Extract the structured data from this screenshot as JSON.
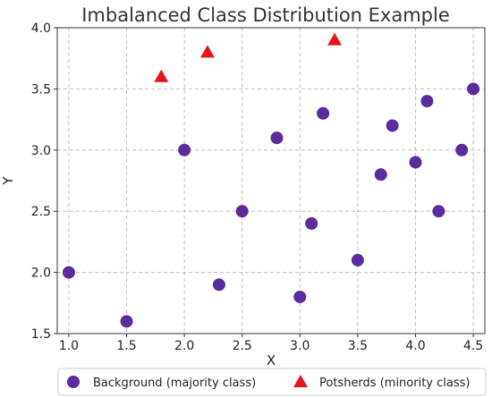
{
  "chart_data": {
    "type": "scatter",
    "title": "Imbalanced Class Distribution Example",
    "xlabel": "X",
    "ylabel": "Y",
    "xlim": [
      0.9,
      4.6
    ],
    "ylim": [
      1.5,
      4.0
    ],
    "xticks": [
      1.0,
      1.5,
      2.0,
      2.5,
      3.0,
      3.5,
      4.0,
      4.5
    ],
    "yticks": [
      1.5,
      2.0,
      2.5,
      3.0,
      3.5,
      4.0
    ],
    "xtick_labels": [
      "1.0",
      "1.5",
      "2.0",
      "2.5",
      "3.0",
      "3.5",
      "4.0",
      "4.5"
    ],
    "ytick_labels": [
      "1.5",
      "2.0",
      "2.5",
      "3.0",
      "3.5",
      "4.0"
    ],
    "grid": true,
    "legend_position": "bottom",
    "series": [
      {
        "name": "Background (majority class)",
        "marker": "circle",
        "color": "#5b2c9c",
        "points": [
          [
            1.0,
            2.0
          ],
          [
            1.5,
            1.6
          ],
          [
            2.0,
            3.0
          ],
          [
            2.3,
            1.9
          ],
          [
            2.5,
            2.5
          ],
          [
            2.8,
            3.1
          ],
          [
            3.0,
            1.8
          ],
          [
            3.1,
            2.4
          ],
          [
            3.2,
            3.3
          ],
          [
            3.5,
            2.1
          ],
          [
            3.7,
            2.8
          ],
          [
            3.8,
            3.2
          ],
          [
            4.0,
            2.9
          ],
          [
            4.1,
            3.4
          ],
          [
            4.2,
            2.5
          ],
          [
            4.4,
            3.0
          ],
          [
            4.5,
            3.5
          ]
        ]
      },
      {
        "name": "Potsherds (minority class)",
        "marker": "triangle",
        "color": "#e8141b",
        "points": [
          [
            1.8,
            3.6
          ],
          [
            2.2,
            3.8
          ],
          [
            3.3,
            3.9
          ]
        ]
      }
    ]
  }
}
